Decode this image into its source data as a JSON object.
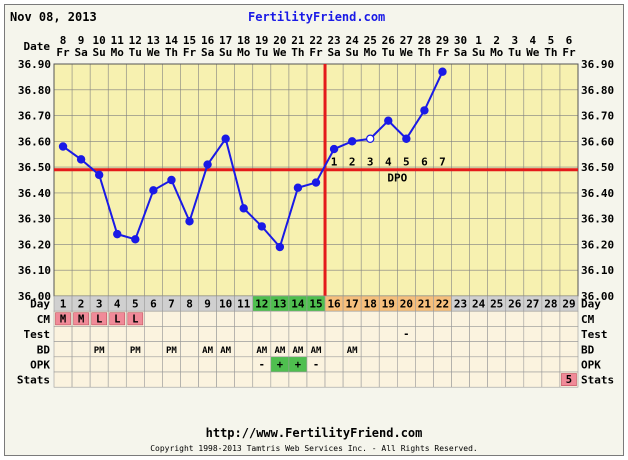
{
  "header": {
    "date": "Nov 08, 2013",
    "site": "FertilityFriend.com"
  },
  "footer": {
    "url": "http://www.FertilityFriend.com",
    "copyright": "Copyright 1998-2013 Tamtris Web Services Inc. - All Rights Reserved."
  },
  "chart_data": {
    "type": "line",
    "title": "",
    "xlabel": "Date",
    "ylabel": "",
    "ylim": [
      36.0,
      36.9
    ],
    "yticks": [
      "36.00",
      "36.10",
      "36.20",
      "36.30",
      "36.40",
      "36.50",
      "36.60",
      "36.70",
      "36.80",
      "36.90"
    ],
    "date_label": "Date",
    "dates": [
      "8",
      "9",
      "10",
      "11",
      "12",
      "13",
      "14",
      "15",
      "16",
      "17",
      "18",
      "19",
      "20",
      "21",
      "22",
      "23",
      "24",
      "25",
      "26",
      "27",
      "28",
      "29",
      "30",
      "1",
      "2",
      "3",
      "4",
      "5",
      "6"
    ],
    "weekdays": [
      "Fr",
      "Sa",
      "Su",
      "Mo",
      "Tu",
      "We",
      "Th",
      "Fr",
      "Sa",
      "Su",
      "Mo",
      "Tu",
      "We",
      "Th",
      "Fr",
      "Sa",
      "Su",
      "Mo",
      "Tu",
      "We",
      "Th",
      "Fr",
      "Sa",
      "Su",
      "Mo",
      "Tu",
      "We",
      "Th",
      "Fr"
    ],
    "cycle_days": [
      "1",
      "2",
      "3",
      "4",
      "5",
      "6",
      "7",
      "8",
      "9",
      "10",
      "11",
      "12",
      "13",
      "14",
      "15",
      "16",
      "17",
      "18",
      "19",
      "20",
      "21",
      "22",
      "23",
      "24",
      "25",
      "26",
      "27",
      "28",
      "29"
    ],
    "series": [
      {
        "values": [
          36.58,
          36.53,
          36.47,
          36.24,
          36.22,
          36.41,
          36.45,
          36.29,
          36.51,
          36.61,
          36.34,
          36.27,
          36.19,
          36.42,
          36.44,
          36.57,
          36.6,
          36.61,
          36.68,
          36.61,
          36.72,
          36.87,
          null,
          null,
          null,
          null,
          null,
          null,
          null
        ],
        "open_points": [
          17
        ],
        "color": "#1a1ae6"
      }
    ],
    "coverline": 36.49,
    "ovulation_day_index": 14,
    "dpo_numbers": [
      "1",
      "2",
      "3",
      "4",
      "5",
      "6",
      "7"
    ],
    "dpo_label": "DPO",
    "rows": [
      {
        "label": "Day",
        "cells": []
      },
      {
        "label": "CM",
        "cells": [
          "M",
          "M",
          "L",
          "L",
          "L",
          "",
          "",
          "",
          "",
          "",
          "",
          "",
          "",
          "",
          "",
          "",
          "",
          "",
          "",
          "",
          "",
          "",
          "",
          "",
          "",
          "",
          "",
          "",
          ""
        ]
      },
      {
        "label": "Test",
        "cells": [
          "",
          "",
          "",
          "",
          "",
          "",
          "",
          "",
          "",
          "",
          "",
          "",
          "",
          "",
          "",
          "",
          "",
          "",
          "",
          "-",
          "",
          "",
          "",
          "",
          "",
          "",
          "",
          "",
          ""
        ]
      },
      {
        "label": "BD",
        "cells": [
          "",
          "",
          "PM",
          "",
          "PM",
          "",
          "PM",
          "",
          "AM",
          "AM",
          "",
          "AM",
          "AM",
          "AM",
          "AM",
          "",
          "AM",
          "",
          "",
          "",
          "",
          "",
          "",
          "",
          "",
          "",
          "",
          "",
          ""
        ]
      },
      {
        "label": "OPK",
        "cells": [
          "",
          "",
          "",
          "",
          "",
          "",
          "",
          "",
          "",
          "",
          "",
          "-",
          "+",
          "+",
          "-",
          "",
          "",
          "",
          "",
          "",
          "",
          "",
          "",
          "",
          "",
          "",
          "",
          "",
          ""
        ]
      },
      {
        "label": "Stats",
        "cells": [
          "",
          "",
          "",
          "",
          "",
          "",
          "",
          "",
          "",
          "",
          "",
          "",
          "",
          "",
          "",
          "",
          "",
          "",
          "",
          "",
          "",
          "",
          "",
          "",
          "",
          "",
          "",
          "",
          "5"
        ]
      }
    ],
    "colors": {
      "plot_bg": "#f7f1b0",
      "grid": "#808080",
      "line": "#1a1ae6",
      "coverline": "#e41b1b",
      "ovulation": "#e41b1b",
      "day_pre": "#d0d0d0",
      "day_fertile": "#4fbf4f",
      "day_post": "#f6bf7c",
      "day_future": "#d0d0d0",
      "cm_badge": "#f08a98",
      "stats_badge": "#f08a98",
      "row_bg": "#fbf3df"
    }
  }
}
